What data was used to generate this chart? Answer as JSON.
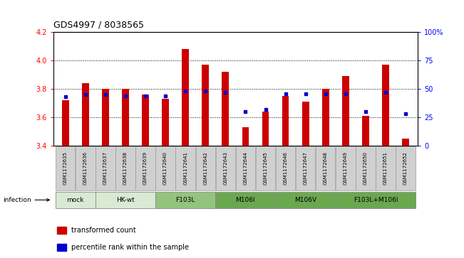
{
  "title": "GDS4997 / 8038565",
  "samples": [
    "GSM1172635",
    "GSM1172636",
    "GSM1172637",
    "GSM1172638",
    "GSM1172639",
    "GSM1172640",
    "GSM1172641",
    "GSM1172642",
    "GSM1172643",
    "GSM1172644",
    "GSM1172645",
    "GSM1172646",
    "GSM1172647",
    "GSM1172648",
    "GSM1172649",
    "GSM1172650",
    "GSM1172651",
    "GSM1172652"
  ],
  "bar_values": [
    3.72,
    3.84,
    3.8,
    3.8,
    3.76,
    3.73,
    4.08,
    3.97,
    3.92,
    3.53,
    3.64,
    3.75,
    3.71,
    3.8,
    3.89,
    3.61,
    3.97,
    3.45
  ],
  "percentile_values": [
    43,
    45,
    45,
    44,
    44,
    44,
    48,
    48,
    47,
    30,
    32,
    46,
    46,
    46,
    46,
    30,
    47,
    28
  ],
  "ylim_left": [
    3.4,
    4.2
  ],
  "ylim_right": [
    0,
    100
  ],
  "yticks_left": [
    3.4,
    3.6,
    3.8,
    4.0,
    4.2
  ],
  "yticks_right": [
    0,
    25,
    50,
    75,
    100
  ],
  "ytick_labels_right": [
    "0",
    "25",
    "50",
    "75",
    "100%"
  ],
  "groups": [
    {
      "label": "mock",
      "start": 0,
      "end": 2,
      "color": "#d9ead3"
    },
    {
      "label": "HK-wt",
      "start": 2,
      "end": 5,
      "color": "#d9ead3"
    },
    {
      "label": "F103L",
      "start": 5,
      "end": 8,
      "color": "#93c47d"
    },
    {
      "label": "M106I",
      "start": 8,
      "end": 11,
      "color": "#6aa84f"
    },
    {
      "label": "M106V",
      "start": 11,
      "end": 14,
      "color": "#6aa84f"
    },
    {
      "label": "F103L+M106I",
      "start": 14,
      "end": 18,
      "color": "#6aa84f"
    }
  ],
  "bar_color": "#cc0000",
  "dot_color": "#0000cc",
  "bar_bottom": 3.4,
  "bar_width": 0.35,
  "infection_label": "infection"
}
